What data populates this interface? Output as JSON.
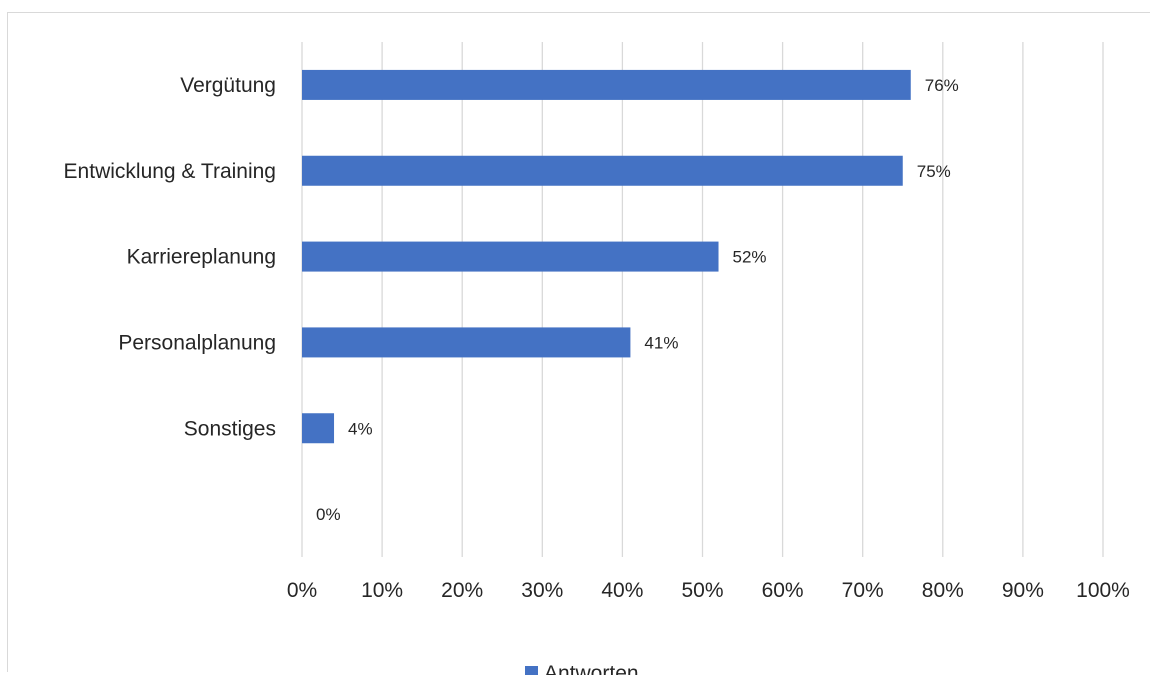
{
  "chart_data": {
    "type": "bar",
    "orientation": "horizontal",
    "categories": [
      "Vergütung",
      "Entwicklung & Training",
      "Karriereplanung",
      "Personalplanung",
      "Sonstiges",
      ""
    ],
    "series": [
      {
        "name": "Antworten",
        "values": [
          76,
          75,
          52,
          41,
          4,
          0
        ],
        "color": "#4472c4"
      }
    ],
    "data_labels": [
      "76%",
      "75%",
      "52%",
      "41%",
      "4%",
      "0%"
    ],
    "xlim": [
      0,
      100
    ],
    "x_ticks": [
      "0%",
      "10%",
      "20%",
      "30%",
      "40%",
      "50%",
      "60%",
      "70%",
      "80%",
      "90%",
      "100%"
    ],
    "grid": "vertical",
    "legend": {
      "position": "bottom",
      "entries": [
        "Antworten"
      ]
    },
    "gridline_color": "#d9d9d9"
  }
}
